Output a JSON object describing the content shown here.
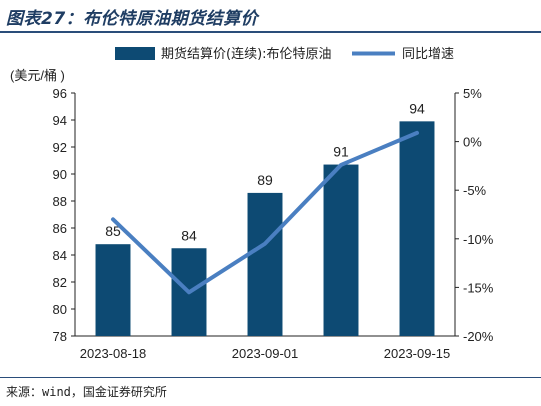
{
  "title": "图表27：布伦特原油期货结算价",
  "source": "来源：wind，国金证券研究所",
  "colors": {
    "bar": "#0d4a73",
    "line": "#4a7fc1",
    "rule": "#2a4d7a"
  },
  "chart_data": {
    "type": "bar+line",
    "unit_left": "(美元/桶 )",
    "x_tick_labels": [
      "2023-08-18",
      "2023-09-01",
      "2023-09-15"
    ],
    "categories": [
      "c1",
      "c2",
      "c3",
      "c4",
      "c5"
    ],
    "ylim_left": [
      78,
      96
    ],
    "yticks_left": [
      78,
      80,
      82,
      84,
      86,
      88,
      90,
      92,
      94,
      96
    ],
    "ylim_right": [
      -20,
      5
    ],
    "yticks_right": [
      -20,
      -15,
      -10,
      -5,
      0,
      5
    ],
    "yticks_right_labels": [
      "-20%",
      "-15%",
      "-10%",
      "-5%",
      "0%",
      "5%"
    ],
    "series": [
      {
        "name": "期货结算价(连续):布伦特原油",
        "type": "bar",
        "axis": "left",
        "values": [
          84.8,
          84.5,
          88.6,
          90.7,
          93.9
        ],
        "data_labels": [
          "85",
          "84",
          "89",
          "91",
          "94"
        ]
      },
      {
        "name": "同比增速",
        "type": "line",
        "axis": "right",
        "values": [
          -8.0,
          -15.5,
          -10.5,
          -2.4,
          0.9
        ]
      }
    ],
    "legend": "top",
    "grid": false
  }
}
